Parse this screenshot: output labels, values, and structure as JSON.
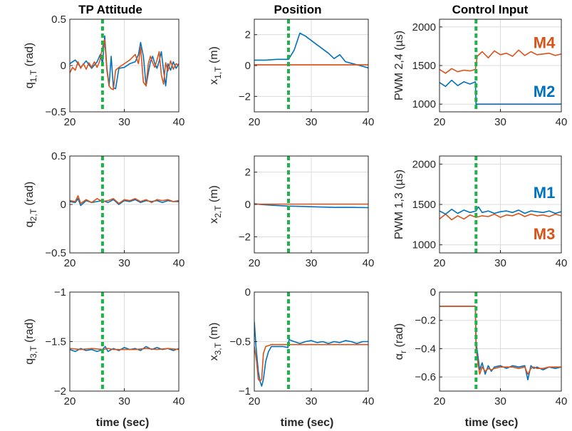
{
  "column_titles": [
    "TP Attitude",
    "Position",
    "Control Input"
  ],
  "xlabel": "time (sec)",
  "colors": {
    "blue": "#0072BD",
    "orange": "#D95319",
    "green_event": "#1FB24A",
    "grid": "#dcdcdc",
    "axes": "#262626"
  },
  "chart_data": [
    {
      "id": "q1",
      "type": "line",
      "ylabel_main": "q",
      "ylabel_sub": "1,T",
      "ylabel_unit": "(rad)",
      "xlim": [
        20,
        40
      ],
      "ylim": [
        -0.5,
        0.5
      ],
      "xticks": [
        20,
        30,
        40
      ],
      "yticks": [
        -0.5,
        0,
        0.5
      ],
      "grid": true,
      "vline_x": 26,
      "series": [
        {
          "color": "blue",
          "x": [
            20,
            21,
            22,
            23,
            24,
            25,
            25.6,
            26,
            26.4,
            26.8,
            27.2,
            27.6,
            28,
            28.4,
            29,
            30,
            31,
            32,
            32.6,
            33,
            33.5,
            34,
            34.4,
            34.8,
            35.2,
            35.6,
            36,
            36.4,
            36.8,
            37.2,
            37.6,
            38,
            38.5,
            39,
            39.5,
            40
          ],
          "y": [
            0.02,
            0.06,
            -0.02,
            0.05,
            -0.03,
            0.04,
            0.12,
            0.02,
            0.32,
            -0.02,
            -0.22,
            0.1,
            -0.24,
            -0.25,
            -0.03,
            -0.02,
            0.02,
            0.04,
            0.12,
            0.25,
            0.1,
            -0.22,
            -0.08,
            0.04,
            0.1,
            0.02,
            -0.03,
            0.05,
            0.15,
            -0.05,
            -0.22,
            0.02,
            -0.05,
            0.04,
            -0.03,
            0.02
          ]
        },
        {
          "color": "orange",
          "x": [
            20,
            20.5,
            21,
            21.5,
            22,
            22.5,
            23,
            23.5,
            24,
            24.5,
            25,
            25.5,
            26,
            26.4,
            26.8,
            27.2,
            27.6,
            28,
            28.4,
            29,
            30,
            31,
            32,
            32.6,
            33,
            33.5,
            34,
            34.4,
            34.8,
            35.2,
            35.6,
            36,
            36.4,
            36.8,
            37.2,
            37.6,
            38,
            38.5,
            39,
            39.5,
            40
          ],
          "y": [
            -0.08,
            -0.02,
            -0.05,
            0.04,
            -0.03,
            0.02,
            -0.04,
            0.03,
            -0.02,
            0.04,
            -0.02,
            0.05,
            0.2,
            0.28,
            -0.05,
            -0.22,
            -0.25,
            -0.26,
            -0.05,
            -0.02,
            0.02,
            0.06,
            0.12,
            0.02,
            0.2,
            -0.18,
            -0.22,
            0.02,
            0.1,
            0.03,
            -0.02,
            0.06,
            0.15,
            -0.1,
            -0.2,
            0.03,
            -0.06,
            0.05,
            -0.04,
            0.02,
            0.0
          ]
        }
      ]
    },
    {
      "id": "x1",
      "type": "line",
      "ylabel_main": "x",
      "ylabel_sub": "1,T",
      "ylabel_unit": "(m)",
      "xlim": [
        20,
        40
      ],
      "ylim": [
        -3,
        3
      ],
      "xticks": [
        20,
        30,
        40
      ],
      "yticks": [
        -2,
        0,
        2
      ],
      "grid": true,
      "vline_x": 26,
      "series": [
        {
          "color": "blue",
          "x": [
            20,
            22,
            24,
            26,
            27,
            28,
            29,
            31,
            33,
            34,
            35,
            36,
            37,
            38,
            40
          ],
          "y": [
            0.35,
            0.35,
            0.4,
            0.4,
            1.0,
            2.1,
            1.9,
            1.35,
            0.8,
            0.45,
            0.7,
            0.25,
            0.15,
            0.05,
            -0.15
          ]
        },
        {
          "color": "orange",
          "x": [
            20,
            40
          ],
          "y": [
            0.05,
            0.05
          ]
        }
      ]
    },
    {
      "id": "pwm24",
      "type": "line",
      "ylabel_main": "PWM 2,4 (µs)",
      "ylabel_sub": "",
      "ylabel_unit": "",
      "xlim": [
        20,
        40
      ],
      "ylim": [
        900,
        2100
      ],
      "xticks": [
        20,
        30,
        40
      ],
      "yticks": [
        1000,
        1500,
        2000
      ],
      "grid": true,
      "vline_x": 26,
      "series": [
        {
          "color": "blue",
          "x": [
            20,
            21,
            22,
            23,
            24,
            25,
            25.9,
            26,
            40
          ],
          "y": [
            1280,
            1230,
            1310,
            1240,
            1290,
            1260,
            1290,
            1000,
            1000
          ]
        },
        {
          "color": "orange",
          "x": [
            20,
            21,
            22,
            23,
            24,
            25,
            25.9,
            26.2,
            27,
            28,
            29,
            30,
            31,
            32,
            33,
            34,
            35,
            36,
            37,
            38,
            39,
            40
          ],
          "y": [
            1450,
            1400,
            1460,
            1420,
            1440,
            1430,
            1450,
            1620,
            1680,
            1600,
            1690,
            1640,
            1660,
            1620,
            1700,
            1630,
            1680,
            1640,
            1650,
            1660,
            1630,
            1650
          ]
        }
      ],
      "labels": [
        {
          "text": "M4",
          "color": "orange",
          "x": 37.2,
          "y": 1800
        },
        {
          "text": "M2",
          "color": "blue",
          "x": 37.2,
          "y": 1170
        }
      ]
    },
    {
      "id": "q2",
      "type": "line",
      "ylabel_main": "q",
      "ylabel_sub": "2,T",
      "ylabel_unit": "(rad)",
      "xlim": [
        20,
        40
      ],
      "ylim": [
        -0.5,
        0.5
      ],
      "xticks": [
        20,
        30,
        40
      ],
      "yticks": [
        -0.5,
        0,
        0.5
      ],
      "grid": true,
      "vline_x": 26,
      "series": [
        {
          "color": "blue",
          "x": [
            20,
            21,
            21.5,
            22,
            23,
            24,
            25,
            26,
            27,
            28,
            29,
            30,
            31,
            32,
            33,
            34,
            35,
            36,
            37,
            38,
            39,
            40
          ],
          "y": [
            0.03,
            0.02,
            0.06,
            -0.01,
            0.04,
            0.02,
            0.03,
            0.04,
            0.02,
            0.05,
            0.0,
            0.04,
            0.03,
            0.05,
            0.02,
            0.04,
            0.03,
            0.04,
            0.02,
            0.04,
            0.03,
            0.03
          ]
        },
        {
          "color": "orange",
          "x": [
            20,
            21,
            21.5,
            22,
            23,
            24,
            25,
            26,
            27,
            28,
            29,
            30,
            31,
            32,
            33,
            34,
            35,
            36,
            37,
            38,
            39,
            40
          ],
          "y": [
            0.04,
            0.03,
            0.09,
            0.01,
            0.05,
            0.02,
            0.06,
            0.03,
            0.04,
            0.06,
            0.01,
            0.05,
            0.04,
            0.06,
            0.03,
            0.05,
            0.02,
            0.05,
            0.04,
            0.05,
            0.03,
            0.04
          ]
        }
      ]
    },
    {
      "id": "x2",
      "type": "line",
      "ylabel_main": "x",
      "ylabel_sub": "2,T",
      "ylabel_unit": "(m)",
      "xlim": [
        20,
        40
      ],
      "ylim": [
        -3,
        3
      ],
      "xticks": [
        20,
        30,
        40
      ],
      "yticks": [
        -2,
        0,
        2
      ],
      "grid": true,
      "vline_x": 26,
      "series": [
        {
          "color": "blue",
          "x": [
            20,
            21,
            23,
            26,
            28,
            31,
            34,
            37,
            40
          ],
          "y": [
            0.05,
            0.0,
            -0.05,
            -0.1,
            -0.12,
            -0.15,
            -0.18,
            -0.18,
            -0.2
          ]
        },
        {
          "color": "orange",
          "x": [
            20,
            40
          ],
          "y": [
            0.02,
            0.02
          ]
        }
      ]
    },
    {
      "id": "pwm13",
      "type": "line",
      "ylabel_main": "PWM 1,3 (µs)",
      "ylabel_sub": "",
      "ylabel_unit": "",
      "xlim": [
        20,
        40
      ],
      "ylim": [
        900,
        2100
      ],
      "xticks": [
        20,
        30,
        40
      ],
      "yticks": [
        1000,
        1500,
        2000
      ],
      "grid": true,
      "vline_x": 26,
      "series": [
        {
          "color": "orange",
          "x": [
            20,
            21,
            22,
            23,
            24,
            25,
            26,
            27,
            28,
            29,
            30,
            31,
            32,
            33,
            34,
            35,
            36,
            37,
            38,
            39,
            40
          ],
          "y": [
            1320,
            1380,
            1310,
            1360,
            1320,
            1370,
            1340,
            1360,
            1350,
            1380,
            1340,
            1370,
            1360,
            1390,
            1350,
            1380,
            1360,
            1370,
            1350,
            1380,
            1360
          ]
        },
        {
          "color": "blue",
          "x": [
            20,
            21,
            22,
            23,
            24,
            25,
            26,
            26.4,
            27,
            28,
            29,
            30,
            31,
            32,
            33,
            34,
            35,
            36,
            37,
            38,
            39,
            40
          ],
          "y": [
            1420,
            1380,
            1440,
            1390,
            1430,
            1400,
            1420,
            1470,
            1400,
            1420,
            1390,
            1410,
            1420,
            1400,
            1430,
            1390,
            1420,
            1410,
            1400,
            1420,
            1390,
            1410
          ]
        }
      ],
      "labels": [
        {
          "text": "M1",
          "color": "blue",
          "x": 37.2,
          "y": 1650
        },
        {
          "text": "M3",
          "color": "orange",
          "x": 37.2,
          "y": 1140
        }
      ]
    },
    {
      "id": "q3",
      "type": "line",
      "ylabel_main": "q",
      "ylabel_sub": "3,T",
      "ylabel_unit": "(rad)",
      "xlim": [
        20,
        40
      ],
      "ylim": [
        -2,
        -1
      ],
      "xticks": [
        20,
        30,
        40
      ],
      "yticks": [
        -2,
        -1.5,
        -1
      ],
      "grid": true,
      "vline_x": 26,
      "series": [
        {
          "color": "blue",
          "x": [
            20,
            21,
            22,
            23,
            24,
            25,
            26,
            26.5,
            27,
            28,
            29,
            30,
            31,
            32,
            33,
            34,
            35,
            36,
            37,
            38,
            39,
            40
          ],
          "y": [
            -1.58,
            -1.6,
            -1.57,
            -1.59,
            -1.58,
            -1.6,
            -1.58,
            -1.55,
            -1.6,
            -1.57,
            -1.59,
            -1.56,
            -1.58,
            -1.57,
            -1.59,
            -1.55,
            -1.58,
            -1.56,
            -1.58,
            -1.57,
            -1.59,
            -1.57
          ]
        },
        {
          "color": "orange",
          "x": [
            20,
            22,
            24,
            26,
            27,
            28,
            30,
            32,
            34,
            36,
            38,
            40
          ],
          "y": [
            -1.57,
            -1.58,
            -1.57,
            -1.58,
            -1.57,
            -1.58,
            -1.58,
            -1.58,
            -1.57,
            -1.58,
            -1.57,
            -1.58
          ]
        }
      ]
    },
    {
      "id": "x3",
      "type": "line",
      "ylabel_main": "x",
      "ylabel_sub": "3,T",
      "ylabel_unit": "(m)",
      "xlim": [
        20,
        40
      ],
      "ylim": [
        -1,
        0
      ],
      "xticks": [
        20,
        30,
        40
      ],
      "yticks": [
        -1,
        -0.5,
        0
      ],
      "grid": true,
      "vline_x": 26,
      "series": [
        {
          "color": "blue",
          "x": [
            20,
            20.3,
            20.7,
            21,
            21.3,
            21.6,
            22,
            22.5,
            23,
            24,
            25,
            25.9,
            26.1,
            27,
            28,
            29,
            30,
            31,
            32,
            33,
            34,
            35,
            36,
            37,
            38,
            39,
            40
          ],
          "y": [
            -0.3,
            -0.55,
            -0.8,
            -0.9,
            -0.95,
            -0.88,
            -0.7,
            -0.6,
            -0.55,
            -0.55,
            -0.55,
            -0.56,
            -0.48,
            -0.5,
            -0.52,
            -0.5,
            -0.49,
            -0.51,
            -0.5,
            -0.52,
            -0.5,
            -0.51,
            -0.49,
            -0.5,
            -0.52,
            -0.5,
            -0.5
          ]
        },
        {
          "color": "orange",
          "x": [
            20,
            20.4,
            20.7,
            21,
            21.3,
            21.6,
            22,
            22.5,
            23,
            24,
            40
          ],
          "y": [
            -0.55,
            -0.7,
            -0.88,
            -0.9,
            -0.88,
            -0.62,
            -0.55,
            -0.54,
            -0.53,
            -0.53,
            -0.53
          ]
        }
      ]
    },
    {
      "id": "alpha",
      "type": "line",
      "ylabel_main": "α",
      "ylabel_sub": "r",
      "ylabel_unit": "(rad)",
      "xlim": [
        20,
        40
      ],
      "ylim": [
        -0.7,
        0
      ],
      "xticks": [
        20,
        30,
        40
      ],
      "yticks": [
        -0.6,
        -0.4,
        -0.2,
        0
      ],
      "grid": true,
      "vline_x": 26,
      "series": [
        {
          "color": "blue",
          "x": [
            20,
            25.9,
            26,
            26.3,
            26.6,
            27,
            27.5,
            28,
            28.5,
            29,
            30,
            31,
            32,
            33,
            34,
            34.5,
            35,
            35.5,
            36,
            37,
            38,
            39,
            40
          ],
          "y": [
            -0.1,
            -0.1,
            -0.35,
            -0.45,
            -0.55,
            -0.5,
            -0.58,
            -0.52,
            -0.56,
            -0.53,
            -0.52,
            -0.54,
            -0.52,
            -0.53,
            -0.52,
            -0.62,
            -0.52,
            -0.54,
            -0.53,
            -0.55,
            -0.53,
            -0.54,
            -0.53
          ]
        },
        {
          "color": "orange",
          "x": [
            20,
            25.9,
            26,
            26.3,
            26.6,
            27,
            27.5,
            28,
            28.5,
            29,
            30,
            31,
            32,
            33,
            34,
            34.5,
            35,
            35.5,
            36,
            37,
            38,
            39,
            40
          ],
          "y": [
            -0.1,
            -0.1,
            -0.4,
            -0.5,
            -0.58,
            -0.53,
            -0.56,
            -0.54,
            -0.55,
            -0.54,
            -0.53,
            -0.53,
            -0.53,
            -0.54,
            -0.53,
            -0.58,
            -0.54,
            -0.53,
            -0.54,
            -0.54,
            -0.53,
            -0.53,
            -0.53
          ]
        }
      ]
    }
  ]
}
